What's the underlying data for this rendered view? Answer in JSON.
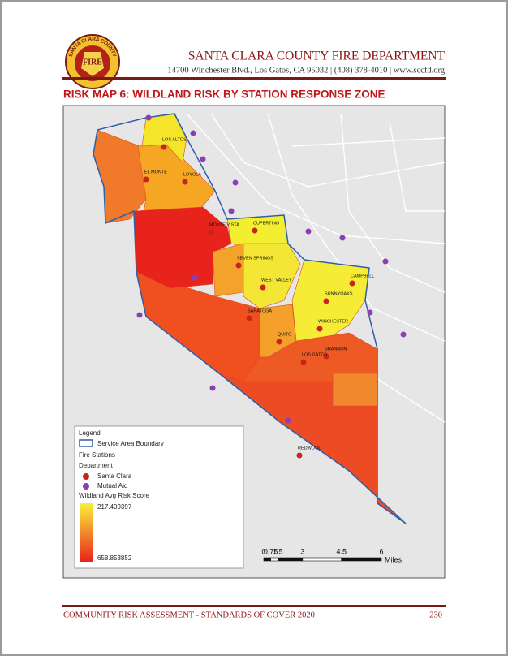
{
  "header": {
    "logo_arc": "SANTA CLARA COUNTY",
    "logo_text": "FIRE",
    "title": "SANTA CLARA COUNTY FIRE DEPARTMENT",
    "address": "14700 Winchester Blvd., Los Gatos, CA 95032 | (408) 378-4010 | www.sccfd.org"
  },
  "map": {
    "title": "RISK MAP 6: WILDLAND RISK BY STATION RESPONSE ZONE",
    "stations": [
      {
        "label": "LOS ALTOS"
      },
      {
        "label": "EL MONTE"
      },
      {
        "label": "LOYOLA"
      },
      {
        "label": "MONTE VISTA"
      },
      {
        "label": "CUPERTINO"
      },
      {
        "label": "SEVEN SPRINGS"
      },
      {
        "label": "WEST VALLEY"
      },
      {
        "label": "SARATOGA"
      },
      {
        "label": "QUITO"
      },
      {
        "label": "SUNNYOAKS"
      },
      {
        "label": "CAMPBELL"
      },
      {
        "label": "WINCHESTER"
      },
      {
        "label": "SHANNON"
      },
      {
        "label": "LOS GATOS"
      },
      {
        "label": "REDWOOD"
      }
    ],
    "legend": {
      "title": "Legend",
      "boundary": "Service Area Boundary",
      "stations_heading": "Fire Stations",
      "department_heading": "Department",
      "santa_clara": "Santa Clara",
      "mutual_aid": "Mutual Aid",
      "score_heading": "Wildland Avg Risk Score",
      "score_high": "217.409397",
      "score_low": "658.853852"
    },
    "scale": {
      "labels": [
        "0",
        "0.75",
        "1.5",
        "3",
        "4.5",
        "6"
      ],
      "unit": "Miles"
    }
  },
  "footer": {
    "text": "COMMUNITY RISK ASSESSMENT - STANDARDS OF COVER 2020",
    "page": "230"
  }
}
